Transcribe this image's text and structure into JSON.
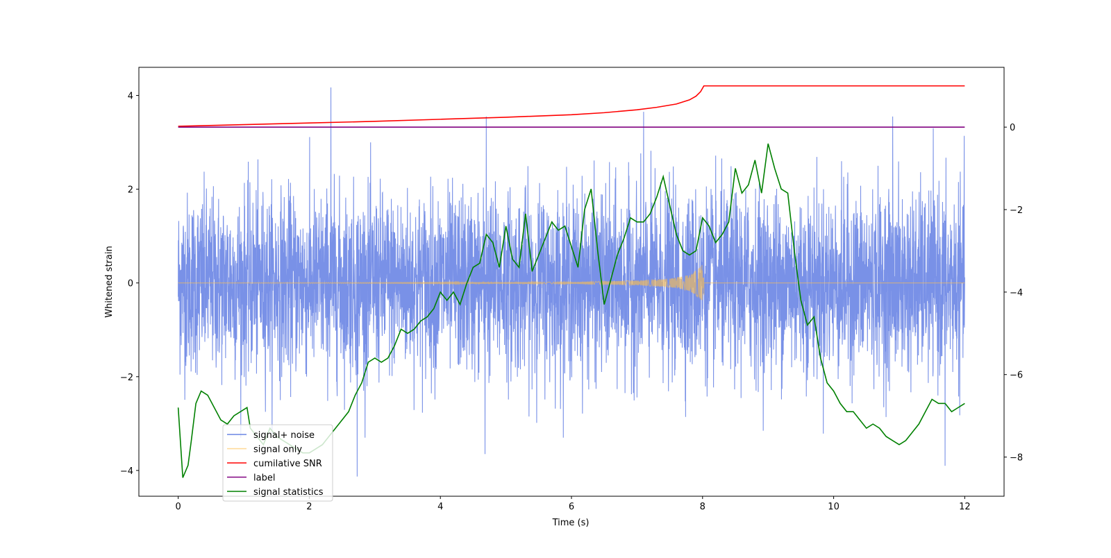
{
  "chart_data": {
    "type": "line",
    "xlabel": "Time (s)",
    "ylabel_left": "Whitened strain",
    "ylabel_right": "",
    "xlim": [
      -0.6,
      12.6
    ],
    "ylim_left": [
      -4.55,
      4.6
    ],
    "ylim_right": [
      -8.95,
      1.45
    ],
    "x_ticks": [
      0,
      2,
      4,
      6,
      8,
      10,
      12
    ],
    "x_tick_labels": [
      "0",
      "2",
      "4",
      "6",
      "8",
      "10",
      "12"
    ],
    "y_left_ticks": [
      -4,
      -2,
      0,
      2,
      4
    ],
    "y_left_tick_labels": [
      "−4",
      "−2",
      "0",
      "2",
      "4"
    ],
    "y_right_ticks": [
      -8,
      -6,
      -4,
      -2,
      0
    ],
    "y_right_tick_labels": [
      "−8",
      "−6",
      "−4",
      "−2",
      "0"
    ],
    "grid": false,
    "legend_position": "lower-left",
    "series": [
      {
        "name": "signal+ noise",
        "axis": "left",
        "color": "#6a85e4",
        "description_values": "gaussian-like noise from t=0 to t=12 with amplitude mostly within ±2.5, occasional peaks up to ±4.2",
        "x_range": [
          0,
          12
        ],
        "typical_band": [
          -2.5,
          2.5
        ],
        "extreme_peaks": [
          {
            "x": 2.33,
            "y": 4.17
          },
          {
            "x": 2.73,
            "y": -4.13
          },
          {
            "x": 4.7,
            "y": 3.55
          },
          {
            "x": 4.68,
            "y": -3.65
          },
          {
            "x": 7.1,
            "y": 3.65
          },
          {
            "x": 10.9,
            "y": 3.55
          },
          {
            "x": 11.7,
            "y": -3.9
          }
        ]
      },
      {
        "name": "signal only",
        "axis": "left",
        "color": "#ffc04d",
        "x": [
          0,
          6.0,
          7.0,
          7.5,
          7.8,
          7.95,
          8.02
        ],
        "envelope": [
          0.003,
          0.02,
          0.05,
          0.09,
          0.17,
          0.32,
          0.44
        ],
        "after_merger_value": 0
      },
      {
        "name": "cumilative SNR",
        "axis": "right",
        "color": "#ff0000",
        "x": [
          0,
          1,
          2,
          3,
          4,
          5,
          6,
          6.5,
          7,
          7.3,
          7.6,
          7.8,
          7.9,
          7.97,
          8.02,
          12
        ],
        "values": [
          0.02,
          0.06,
          0.1,
          0.14,
          0.19,
          0.24,
          0.3,
          0.35,
          0.42,
          0.48,
          0.56,
          0.66,
          0.75,
          0.86,
          1.0,
          1.0
        ]
      },
      {
        "name": "label",
        "axis": "right",
        "color": "#800080",
        "x": [
          0,
          12
        ],
        "values": [
          0,
          0
        ]
      },
      {
        "name": "signal statistics",
        "axis": "right",
        "color": "#008000",
        "x": [
          0,
          0.07,
          0.15,
          0.2,
          0.27,
          0.35,
          0.45,
          0.55,
          0.65,
          0.75,
          0.85,
          0.95,
          1.05,
          1.1,
          1.2,
          1.3,
          1.4,
          1.5,
          1.6,
          1.7,
          1.8,
          1.9,
          2.0,
          2.1,
          2.2,
          2.3,
          2.4,
          2.5,
          2.6,
          2.7,
          2.8,
          2.9,
          3.0,
          3.1,
          3.2,
          3.3,
          3.4,
          3.5,
          3.6,
          3.7,
          3.8,
          3.9,
          4.0,
          4.1,
          4.2,
          4.3,
          4.4,
          4.5,
          4.6,
          4.7,
          4.8,
          4.9,
          5.0,
          5.1,
          5.2,
          5.3,
          5.4,
          5.5,
          5.6,
          5.7,
          5.8,
          5.9,
          6.0,
          6.1,
          6.2,
          6.3,
          6.4,
          6.5,
          6.6,
          6.7,
          6.8,
          6.9,
          7.0,
          7.1,
          7.2,
          7.3,
          7.4,
          7.5,
          7.6,
          7.7,
          7.8,
          7.9,
          8.0,
          8.1,
          8.2,
          8.3,
          8.4,
          8.5,
          8.6,
          8.7,
          8.8,
          8.9,
          9.0,
          9.05,
          9.1,
          9.2,
          9.3,
          9.4,
          9.5,
          9.6,
          9.7,
          9.8,
          9.9,
          10.0,
          10.1,
          10.2,
          10.3,
          10.4,
          10.5,
          10.6,
          10.7,
          10.8,
          10.9,
          11.0,
          11.1,
          11.2,
          11.3,
          11.4,
          11.5,
          11.6,
          11.7,
          11.8,
          11.9,
          12.0
        ],
        "values": [
          -6.8,
          -8.5,
          -8.2,
          -7.6,
          -6.7,
          -6.4,
          -6.5,
          -6.8,
          -7.1,
          -7.2,
          -7.0,
          -6.9,
          -6.8,
          -7.3,
          -7.5,
          -7.7,
          -7.3,
          -7.5,
          -7.6,
          -7.7,
          -7.8,
          -7.9,
          -7.9,
          -7.8,
          -7.7,
          -7.5,
          -7.3,
          -7.1,
          -6.9,
          -6.5,
          -6.2,
          -5.7,
          -5.6,
          -5.7,
          -5.6,
          -5.3,
          -4.9,
          -5.0,
          -4.9,
          -4.7,
          -4.6,
          -4.4,
          -4.0,
          -4.2,
          -4.0,
          -4.3,
          -3.8,
          -3.4,
          -3.3,
          -2.6,
          -2.8,
          -3.4,
          -2.4,
          -3.2,
          -3.4,
          -2.1,
          -3.5,
          -3.1,
          -2.7,
          -2.3,
          -2.5,
          -2.4,
          -2.9,
          -3.4,
          -2.0,
          -1.5,
          -3.0,
          -4.3,
          -3.7,
          -3.1,
          -2.7,
          -2.2,
          -2.3,
          -2.3,
          -2.1,
          -1.7,
          -1.2,
          -1.9,
          -2.6,
          -3.0,
          -3.1,
          -3.0,
          -2.2,
          -2.4,
          -2.8,
          -2.6,
          -2.3,
          -1.0,
          -1.6,
          -1.4,
          -0.8,
          -1.6,
          -0.4,
          -0.7,
          -1.0,
          -1.5,
          -1.6,
          -3.0,
          -4.2,
          -4.8,
          -4.6,
          -5.6,
          -6.2,
          -6.4,
          -6.7,
          -6.9,
          -6.9,
          -7.1,
          -7.3,
          -7.2,
          -7.3,
          -7.5,
          -7.6,
          -7.7,
          -7.6,
          -7.4,
          -7.2,
          -6.9,
          -6.6,
          -6.7,
          -6.7,
          -6.9,
          -6.8,
          -6.7
        ]
      }
    ]
  }
}
